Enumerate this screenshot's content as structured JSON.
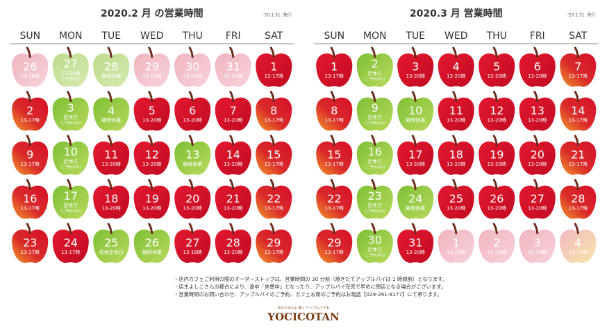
{
  "calendars": [
    {
      "title": "2020.2 月 の営業時間",
      "issued": "'20.1.31. 発行",
      "weekdays": [
        "SUN",
        "MON",
        "TUE",
        "WED",
        "THU",
        "FRI",
        "SAT"
      ],
      "cells": [
        {
          "day": 26,
          "note": "13-16時",
          "style": "pink"
        },
        {
          "day": 27,
          "note": "13-20時",
          "sub": "（ご予約のみ）",
          "style": "pale-green"
        },
        {
          "day": 28,
          "note": "臨時休業",
          "style": "pale-green"
        },
        {
          "day": 29,
          "note": "13-20時",
          "style": "pink"
        },
        {
          "day": 30,
          "note": "13-20時",
          "style": "pink"
        },
        {
          "day": 31,
          "note": "13-20時",
          "style": "pink"
        },
        {
          "day": 1,
          "note": "13-17時",
          "style": "red"
        },
        {
          "day": 2,
          "note": "13-17時",
          "style": "sunset"
        },
        {
          "day": 3,
          "note": "定休日",
          "sub": "（ご予約のみ）",
          "style": "green"
        },
        {
          "day": 4,
          "note": "臨時休業",
          "style": "green"
        },
        {
          "day": 5,
          "note": "13-20時",
          "style": "red"
        },
        {
          "day": 6,
          "note": "13-20時",
          "style": "red"
        },
        {
          "day": 7,
          "note": "13-20時",
          "style": "red"
        },
        {
          "day": 8,
          "note": "13-17時",
          "style": "sunset"
        },
        {
          "day": 9,
          "note": "13-17時",
          "style": "sunset"
        },
        {
          "day": 10,
          "note": "定休日",
          "sub": "（ご予約のみ）",
          "style": "green"
        },
        {
          "day": 11,
          "note": "13-20時",
          "style": "red"
        },
        {
          "day": 12,
          "note": "13-20時",
          "style": "red"
        },
        {
          "day": 13,
          "note": "臨時休業",
          "style": "green"
        },
        {
          "day": 14,
          "note": "13-20時",
          "style": "red"
        },
        {
          "day": 15,
          "note": "13-17時",
          "style": "sunset"
        },
        {
          "day": 16,
          "note": "13-17時",
          "style": "sunset"
        },
        {
          "day": 17,
          "note": "定休日",
          "sub": "（ご予約のみ）",
          "style": "green"
        },
        {
          "day": 18,
          "note": "13-20時",
          "style": "red"
        },
        {
          "day": 19,
          "note": "13-20時",
          "style": "red"
        },
        {
          "day": 20,
          "note": "13-20時",
          "style": "red"
        },
        {
          "day": 21,
          "note": "13-20時",
          "style": "red"
        },
        {
          "day": 22,
          "note": "13-17時",
          "style": "sunset"
        },
        {
          "day": 23,
          "note": "13-17時",
          "style": "sunset"
        },
        {
          "day": 24,
          "note": "13-17時",
          "style": "red"
        },
        {
          "day": 25,
          "note": "振替定休日",
          "style": "green"
        },
        {
          "day": 26,
          "note": "臨時休業",
          "style": "green"
        },
        {
          "day": 27,
          "note": "13-16時",
          "style": "red"
        },
        {
          "day": 28,
          "note": "13-20時",
          "style": "red"
        },
        {
          "day": 29,
          "note": "13-17時",
          "style": "sunset"
        }
      ]
    },
    {
      "title": "2020.3 月 営業時間",
      "issued": "'20.1.31. 発行",
      "weekdays": [
        "SUN",
        "MON",
        "TUE",
        "WED",
        "THU",
        "FRI",
        "SAT"
      ],
      "cells": [
        {
          "day": 1,
          "note": "13-17時",
          "style": "red"
        },
        {
          "day": 2,
          "note": "定休日",
          "sub": "（ご予約のみ）",
          "style": "green"
        },
        {
          "day": 3,
          "note": "13-20時",
          "style": "red"
        },
        {
          "day": 4,
          "note": "13-20時",
          "style": "red"
        },
        {
          "day": 5,
          "note": "13-20時",
          "style": "red"
        },
        {
          "day": 6,
          "note": "13-20時",
          "style": "red"
        },
        {
          "day": 7,
          "note": "13-17時",
          "style": "sunset"
        },
        {
          "day": 8,
          "note": "13-17時",
          "style": "sunset"
        },
        {
          "day": 9,
          "note": "定休日",
          "sub": "（ご予約のみ）",
          "style": "green"
        },
        {
          "day": 10,
          "note": "臨時休業",
          "style": "green"
        },
        {
          "day": 11,
          "note": "13-20時",
          "style": "red"
        },
        {
          "day": 12,
          "note": "13-20時",
          "style": "red"
        },
        {
          "day": 13,
          "note": "13-20時",
          "style": "red"
        },
        {
          "day": 14,
          "note": "13-17時",
          "style": "sunset"
        },
        {
          "day": 15,
          "note": "13-17時",
          "style": "sunset"
        },
        {
          "day": 16,
          "note": "定休日",
          "sub": "（ご予約のみ）",
          "style": "green"
        },
        {
          "day": 17,
          "note": "13-20時",
          "style": "red"
        },
        {
          "day": 18,
          "note": "13-20時",
          "style": "red"
        },
        {
          "day": 19,
          "note": "13-20時",
          "style": "red"
        },
        {
          "day": 20,
          "note": "13-20時",
          "style": "red"
        },
        {
          "day": 21,
          "note": "13-17時",
          "style": "sunset"
        },
        {
          "day": 22,
          "note": "13-17時",
          "style": "sunset"
        },
        {
          "day": 23,
          "note": "定休日",
          "sub": "（ご予約のみ）",
          "style": "green"
        },
        {
          "day": 24,
          "note": "臨時休業",
          "style": "green"
        },
        {
          "day": 25,
          "note": "13-20時",
          "style": "red"
        },
        {
          "day": 26,
          "note": "13-20時",
          "style": "red"
        },
        {
          "day": 27,
          "note": "13-20時",
          "style": "red"
        },
        {
          "day": 28,
          "note": "13-17時",
          "style": "sunset"
        },
        {
          "day": 29,
          "note": "13-17時",
          "style": "sunset"
        },
        {
          "day": 30,
          "note": "定休日",
          "sub": "（ご予約のみ）",
          "style": "green"
        },
        {
          "day": 31,
          "note": "13-20時",
          "style": "red"
        },
        {
          "day": 1,
          "note": "13-20時",
          "style": "pink"
        },
        {
          "day": 2,
          "note": "13-20時",
          "style": "pink"
        },
        {
          "day": 3,
          "note": "13-20時",
          "style": "pink"
        },
        {
          "day": 4,
          "note": "13-17時",
          "style": "pale"
        }
      ]
    }
  ],
  "footer": {
    "notes": [
      "・店内カフェご利用の際のオーダーストップは、営業時間の 30 分前（焼きたてアップルパイは 1 時間前）となります。",
      "・店主よしこさんの都合により、途中「休憩中」となったり、アップルパイ完売で早めに閉店となる場合がございます。",
      "・営業時間のお問い合わせ、アップルパイのご予約、カフェお席のご予約はお電話【029-291-8177】にて承ります。"
    ],
    "logo": {
      "tagline": "あなたの心に届くアップルパイを",
      "name": "YOCICOTAN"
    }
  }
}
